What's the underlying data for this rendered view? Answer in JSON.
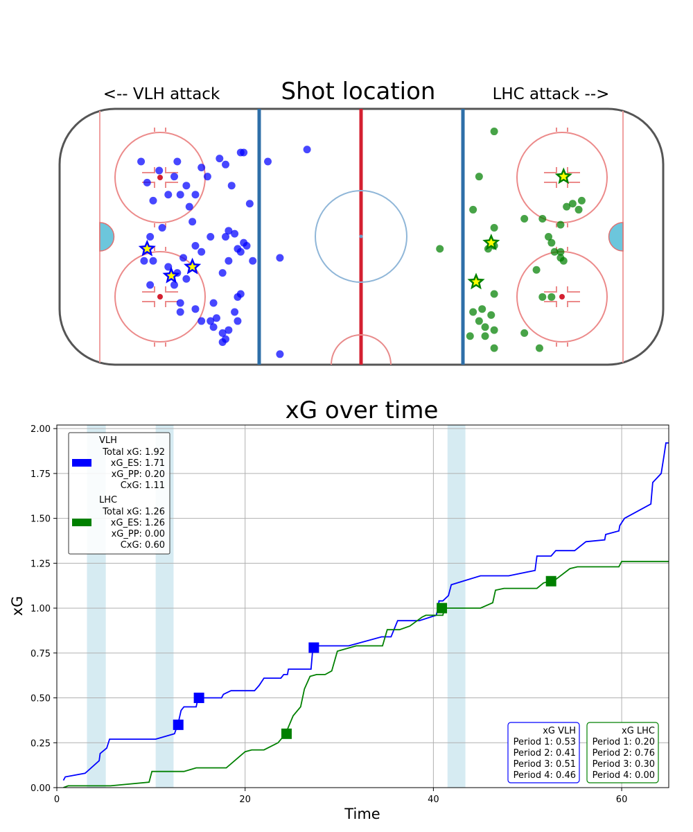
{
  "rink": {
    "title": "Shot location",
    "left_label": "<-- VLH attack",
    "right_label": "LHC attack -->"
  },
  "colors": {
    "vlh": "#0000ff",
    "lhc": "#008000",
    "pp_band": "#add8e6",
    "goal_star": "#ffff00"
  },
  "chart_data": [
    {
      "type": "scatter",
      "title": "Shot location",
      "x_range": [
        -100,
        100
      ],
      "y_range": [
        -42.5,
        42.5
      ],
      "series": [
        {
          "name": "VLH",
          "shots": [
            [
              -73,
              25
            ],
            [
              -71,
              18
            ],
            [
              -69,
              12
            ],
            [
              -67,
              22
            ],
            [
              -64,
              14
            ],
            [
              -62,
              20
            ],
            [
              -61,
              25
            ],
            [
              -60,
              14
            ],
            [
              -58,
              17
            ],
            [
              -57,
              10
            ],
            [
              -56,
              5
            ],
            [
              -53,
              23
            ],
            [
              -55,
              14
            ],
            [
              -51,
              20
            ],
            [
              -47,
              26
            ],
            [
              -45,
              24
            ],
            [
              -43,
              17
            ],
            [
              -40,
              28
            ],
            [
              -39,
              28
            ],
            [
              -37,
              11
            ],
            [
              -31,
              25
            ],
            [
              -70,
              0
            ],
            [
              -66,
              3
            ],
            [
              -64,
              -10
            ],
            [
              -61,
              -12
            ],
            [
              -59,
              -7
            ],
            [
              -58,
              -14
            ],
            [
              -60,
              -22
            ],
            [
              -62,
              -16
            ],
            [
              -69,
              -8
            ],
            [
              -72,
              -8
            ],
            [
              -70,
              -16
            ],
            [
              -55,
              -3
            ],
            [
              -53,
              -5
            ],
            [
              -50,
              0
            ],
            [
              -49,
              -22
            ],
            [
              -45,
              0
            ],
            [
              -44,
              2
            ],
            [
              -42,
              1
            ],
            [
              -41,
              -4
            ],
            [
              -40,
              -5
            ],
            [
              -39,
              -2
            ],
            [
              -38,
              -3
            ],
            [
              -44,
              -8
            ],
            [
              -46,
              -12
            ],
            [
              -41,
              -20
            ],
            [
              -40,
              -19
            ],
            [
              -36,
              -8
            ],
            [
              -60,
              -25
            ],
            [
              -55,
              -24
            ],
            [
              -53,
              -28
            ],
            [
              -50,
              -28
            ],
            [
              -49,
              -30
            ],
            [
              -48,
              -27
            ],
            [
              -42,
              -25
            ],
            [
              -41,
              -28
            ],
            [
              -44,
              -31
            ],
            [
              -45,
              -34
            ],
            [
              -46,
              -35
            ],
            [
              -46,
              -32
            ],
            [
              -27,
              -7
            ],
            [
              -18,
              29
            ],
            [
              -27,
              -39
            ]
          ],
          "goals": [
            [
              -71,
              -4
            ],
            [
              -56,
              -10
            ],
            [
              -63,
              -13
            ]
          ]
        },
        {
          "name": "LHC",
          "shots": [
            [
              44,
              35
            ],
            [
              39,
              20
            ],
            [
              37,
              9
            ],
            [
              44,
              3
            ],
            [
              54,
              6
            ],
            [
              66,
              4
            ],
            [
              68,
              10
            ],
            [
              70,
              11
            ],
            [
              72,
              9
            ],
            [
              73,
              12
            ],
            [
              60,
              6
            ],
            [
              62,
              0
            ],
            [
              63,
              -2
            ],
            [
              64,
              -5
            ],
            [
              66,
              -7
            ],
            [
              66,
              -5
            ],
            [
              67,
              -8
            ],
            [
              58,
              -11
            ],
            [
              60,
              -20
            ],
            [
              63,
              -20
            ],
            [
              44,
              -19
            ],
            [
              43,
              -26
            ],
            [
              40,
              -24
            ],
            [
              37,
              -25
            ],
            [
              39,
              -28
            ],
            [
              41,
              -30
            ],
            [
              44,
              -31
            ],
            [
              41,
              -33
            ],
            [
              36,
              -33
            ],
            [
              44,
              -37
            ],
            [
              54,
              -32
            ],
            [
              59,
              -37
            ],
            [
              26,
              -4
            ],
            [
              42,
              -4
            ],
            [
              44,
              -3
            ]
          ],
          "goals": [
            [
              67,
              20
            ],
            [
              43,
              -2
            ],
            [
              38,
              -15
            ]
          ]
        }
      ]
    },
    {
      "type": "line",
      "title": "xG over time",
      "xlabel": "Time",
      "ylabel": "xG",
      "xlim": [
        0,
        65
      ],
      "ylim": [
        0,
        2.02
      ],
      "x_ticks": [
        0,
        20,
        40,
        60
      ],
      "y_ticks": [
        0.0,
        0.25,
        0.5,
        0.75,
        1.0,
        1.25,
        1.5,
        1.75,
        2.0
      ],
      "x_tick_labels": [
        "0",
        "20",
        "40",
        "60"
      ],
      "y_tick_labels": [
        "0.00",
        "0.25",
        "0.50",
        "0.75",
        "1.00",
        "1.25",
        "1.50",
        "1.75",
        "2.00"
      ],
      "grid": true,
      "power_play_bands": [
        [
          3.2,
          5.2
        ],
        [
          10.5,
          12.4
        ],
        [
          41.5,
          43.4
        ]
      ],
      "series": [
        {
          "name": "VLH",
          "points": [
            [
              0.7,
              0.04
            ],
            [
              0.9,
              0.06
            ],
            [
              3,
              0.08
            ],
            [
              4.5,
              0.15
            ],
            [
              4.6,
              0.19
            ],
            [
              5.3,
              0.22
            ],
            [
              5.6,
              0.27
            ],
            [
              10.5,
              0.27
            ],
            [
              12.5,
              0.3
            ],
            [
              12.9,
              0.36
            ],
            [
              13.2,
              0.43
            ],
            [
              13.5,
              0.45
            ],
            [
              14.8,
              0.45
            ],
            [
              15,
              0.5
            ],
            [
              17.5,
              0.5
            ],
            [
              17.7,
              0.52
            ],
            [
              18.5,
              0.54
            ],
            [
              21,
              0.54
            ],
            [
              21.5,
              0.57
            ],
            [
              22,
              0.61
            ],
            [
              23.8,
              0.61
            ],
            [
              24.1,
              0.63
            ],
            [
              24.5,
              0.63
            ],
            [
              24.6,
              0.66
            ],
            [
              27,
              0.66
            ],
            [
              27.2,
              0.78
            ],
            [
              27.6,
              0.79
            ],
            [
              31,
              0.79
            ],
            [
              34.5,
              0.84
            ],
            [
              35.5,
              0.84
            ],
            [
              36.2,
              0.93
            ],
            [
              38.5,
              0.93
            ],
            [
              40.3,
              0.96
            ],
            [
              40.5,
              1.0
            ],
            [
              40.6,
              1.04
            ],
            [
              41,
              1.04
            ],
            [
              41.6,
              1.07
            ],
            [
              41.9,
              1.13
            ],
            [
              45,
              1.18
            ],
            [
              48,
              1.18
            ],
            [
              50.8,
              1.21
            ],
            [
              51,
              1.29
            ],
            [
              52.5,
              1.29
            ],
            [
              53,
              1.32
            ],
            [
              55,
              1.32
            ],
            [
              56.2,
              1.37
            ],
            [
              58.2,
              1.38
            ],
            [
              58.3,
              1.41
            ],
            [
              59.7,
              1.43
            ],
            [
              59.8,
              1.46
            ],
            [
              60.3,
              1.5
            ],
            [
              63.1,
              1.58
            ],
            [
              63.3,
              1.7
            ],
            [
              64.2,
              1.75
            ],
            [
              64.5,
              1.85
            ],
            [
              64.7,
              1.92
            ],
            [
              65,
              1.92
            ]
          ],
          "markers": [
            [
              12.9,
              0.35
            ],
            [
              15.1,
              0.5
            ],
            [
              27.3,
              0.78
            ]
          ],
          "summary": {
            "total_label": "Total xG: 1.92",
            "es_label": "xG_ES: 1.71",
            "pp_label": "xG_PP: 0.20",
            "cxg_label": "CxG: 1.11",
            "box_title": "xG VLH",
            "periods": [
              "Period 1: 0.53",
              "Period 2: 0.41",
              "Period 3: 0.51",
              "Period 4: 0.46"
            ]
          }
        },
        {
          "name": "LHC",
          "points": [
            [
              0.7,
              0.0
            ],
            [
              1.2,
              0.01
            ],
            [
              5.7,
              0.01
            ],
            [
              9.8,
              0.03
            ],
            [
              10.1,
              0.09
            ],
            [
              13.5,
              0.09
            ],
            [
              14.8,
              0.11
            ],
            [
              18,
              0.11
            ],
            [
              20,
              0.2
            ],
            [
              20.7,
              0.21
            ],
            [
              22,
              0.21
            ],
            [
              23.5,
              0.25
            ],
            [
              24.3,
              0.3
            ],
            [
              25.1,
              0.4
            ],
            [
              25.9,
              0.45
            ],
            [
              26.3,
              0.55
            ],
            [
              26.9,
              0.62
            ],
            [
              27.6,
              0.63
            ],
            [
              28.5,
              0.63
            ],
            [
              29.2,
              0.65
            ],
            [
              29.8,
              0.76
            ],
            [
              31.8,
              0.79
            ],
            [
              34.6,
              0.79
            ],
            [
              35.1,
              0.88
            ],
            [
              36.4,
              0.88
            ],
            [
              37.5,
              0.9
            ],
            [
              38.8,
              0.95
            ],
            [
              39.2,
              0.96
            ],
            [
              41,
              0.96
            ],
            [
              41.2,
              1.0
            ],
            [
              45,
              1.0
            ],
            [
              46.3,
              1.03
            ],
            [
              46.6,
              1.1
            ],
            [
              47.5,
              1.11
            ],
            [
              51,
              1.11
            ],
            [
              51.7,
              1.14
            ],
            [
              53,
              1.16
            ],
            [
              54.5,
              1.22
            ],
            [
              55.3,
              1.23
            ],
            [
              59.7,
              1.23
            ],
            [
              60,
              1.26
            ],
            [
              65,
              1.26
            ]
          ],
          "markers": [
            [
              24.4,
              0.3
            ],
            [
              40.9,
              1.0
            ],
            [
              52.5,
              1.15
            ]
          ],
          "summary": {
            "total_label": "Total xG: 1.26",
            "es_label": "xG_ES: 1.26",
            "pp_label": "xG_PP: 0.00",
            "cxg_label": "CxG: 0.60",
            "box_title": "xG LHC",
            "periods": [
              "Period 1: 0.20",
              "Period 2: 0.76",
              "Period 3: 0.30",
              "Period 4: 0.00"
            ]
          }
        }
      ]
    }
  ]
}
